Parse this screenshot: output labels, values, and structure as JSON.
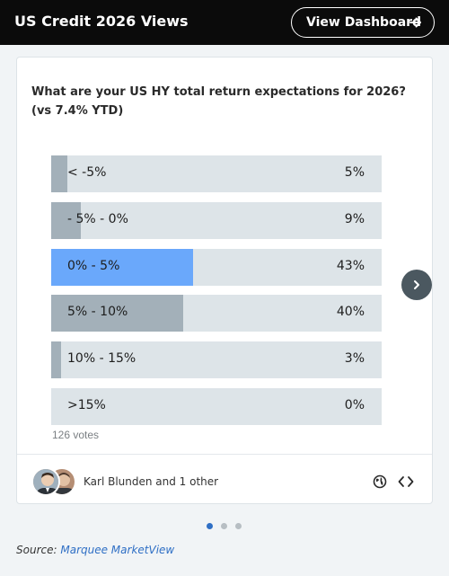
{
  "header": {
    "title": "US Credit 2026 Views",
    "dashboard_button": "View Dashboard"
  },
  "poll": {
    "question": "What are your US HY total return expectations for 2026? (vs 7.4% YTD)",
    "options": [
      {
        "label": "< -5%",
        "pct_text": "5%",
        "pct": 5,
        "selected": false
      },
      {
        "label": "- 5% - 0%",
        "pct_text": "9%",
        "pct": 9,
        "selected": false
      },
      {
        "label": "0% - 5%",
        "pct_text": "43%",
        "pct": 43,
        "selected": true
      },
      {
        "label": "5% - 10%",
        "pct_text": "40%",
        "pct": 40,
        "selected": false
      },
      {
        "label": "10% - 15%",
        "pct_text": "3%",
        "pct": 3,
        "selected": false
      },
      {
        "label": ">15%",
        "pct_text": "0%",
        "pct": 0,
        "selected": false
      }
    ],
    "votes": "126 votes",
    "voters_text": "Karl Blunden and 1 other"
  },
  "colors": {
    "header_bg": "#0b0b0b",
    "selected_fill": "#6aa8fb",
    "bar_fill": "#a3b0b9",
    "bar_track": "#dde4e8",
    "link": "#2f6fc5"
  },
  "icons": {
    "arrow": "arrow-right-icon",
    "next": "chevron-right-icon",
    "globe": "globe-icon",
    "embed": "code-icon"
  },
  "carousel": {
    "pages": 3,
    "active_page": 1
  },
  "footer": {
    "source_prefix": "Source:",
    "source_link": "Marquee MarketView"
  }
}
